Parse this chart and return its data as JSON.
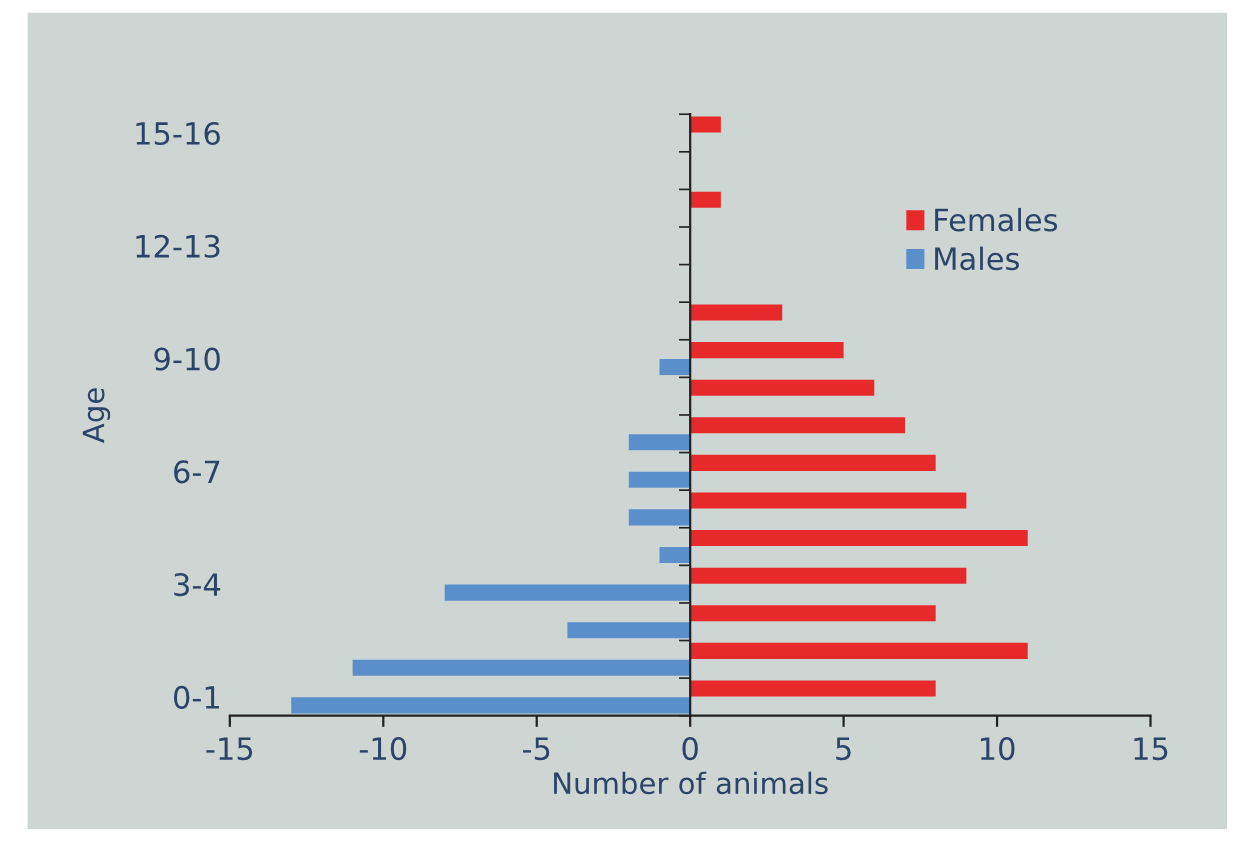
{
  "chart_data": {
    "type": "bar",
    "orientation": "horizontal",
    "xlabel": "Number of animals",
    "ylabel": "Age",
    "categories": [
      "15-16",
      null,
      null,
      "12-13",
      null,
      null,
      "9-10",
      null,
      null,
      "6-7",
      null,
      null,
      "3-4",
      null,
      null,
      "0-1"
    ],
    "series": [
      {
        "name": "Females",
        "color": "#e8292b",
        "values": [
          1,
          0,
          1,
          0,
          0,
          3,
          5,
          6,
          7,
          8,
          9,
          11,
          9,
          8,
          11,
          8
        ]
      },
      {
        "name": "Males",
        "color": "#5b8fcc",
        "values": [
          0,
          0,
          0,
          0,
          0,
          0,
          -1,
          0,
          -2,
          -2,
          -2,
          -1,
          -8,
          -4,
          -11,
          -13
        ]
      }
    ],
    "xlim": [
      -15,
      15
    ],
    "xticks": [
      -15,
      -10,
      -5,
      0,
      5,
      10,
      15
    ],
    "legend": "top right"
  }
}
